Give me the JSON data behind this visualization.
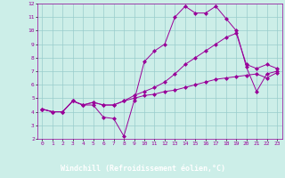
{
  "xlabel": "Windchill (Refroidissement éolien,°C)",
  "xlim": [
    -0.5,
    23.5
  ],
  "ylim": [
    2,
    12
  ],
  "xticks": [
    0,
    1,
    2,
    3,
    4,
    5,
    6,
    7,
    8,
    9,
    10,
    11,
    12,
    13,
    14,
    15,
    16,
    17,
    18,
    19,
    20,
    21,
    22,
    23
  ],
  "yticks": [
    2,
    3,
    4,
    5,
    6,
    7,
    8,
    9,
    10,
    11,
    12
  ],
  "bg_color": "#cceee8",
  "grid_color": "#99cccc",
  "line_color": "#990099",
  "xlabel_bg": "#330033",
  "xlabel_fg": "#ffffff",
  "series": [
    {
      "x": [
        0,
        1,
        2,
        3,
        4,
        5,
        6,
        7,
        8,
        9,
        10,
        11,
        12,
        13,
        14,
        15,
        16,
        17,
        18,
        19,
        20,
        21,
        22,
        23
      ],
      "y": [
        4.2,
        4.0,
        4.0,
        4.8,
        4.5,
        4.5,
        3.6,
        3.5,
        2.2,
        4.8,
        7.7,
        8.5,
        9.0,
        11.0,
        11.8,
        11.3,
        11.3,
        11.8,
        10.9,
        10.0,
        7.3,
        5.5,
        6.8,
        7.0
      ]
    },
    {
      "x": [
        0,
        1,
        2,
        3,
        4,
        5,
        6,
        7,
        8,
        9,
        10,
        11,
        12,
        13,
        14,
        15,
        16,
        17,
        18,
        19,
        20,
        21,
        22,
        23
      ],
      "y": [
        4.2,
        4.0,
        4.0,
        4.8,
        4.5,
        4.7,
        4.5,
        4.5,
        4.8,
        5.2,
        5.5,
        5.8,
        6.2,
        6.8,
        7.5,
        8.0,
        8.5,
        9.0,
        9.5,
        9.8,
        7.5,
        7.2,
        7.5,
        7.2
      ]
    },
    {
      "x": [
        0,
        1,
        2,
        3,
        4,
        5,
        6,
        7,
        8,
        9,
        10,
        11,
        12,
        13,
        14,
        15,
        16,
        17,
        18,
        19,
        20,
        21,
        22,
        23
      ],
      "y": [
        4.2,
        4.0,
        4.0,
        4.8,
        4.5,
        4.7,
        4.5,
        4.5,
        4.8,
        5.0,
        5.2,
        5.3,
        5.5,
        5.6,
        5.8,
        6.0,
        6.2,
        6.4,
        6.5,
        6.6,
        6.7,
        6.8,
        6.5,
        6.9
      ]
    }
  ]
}
